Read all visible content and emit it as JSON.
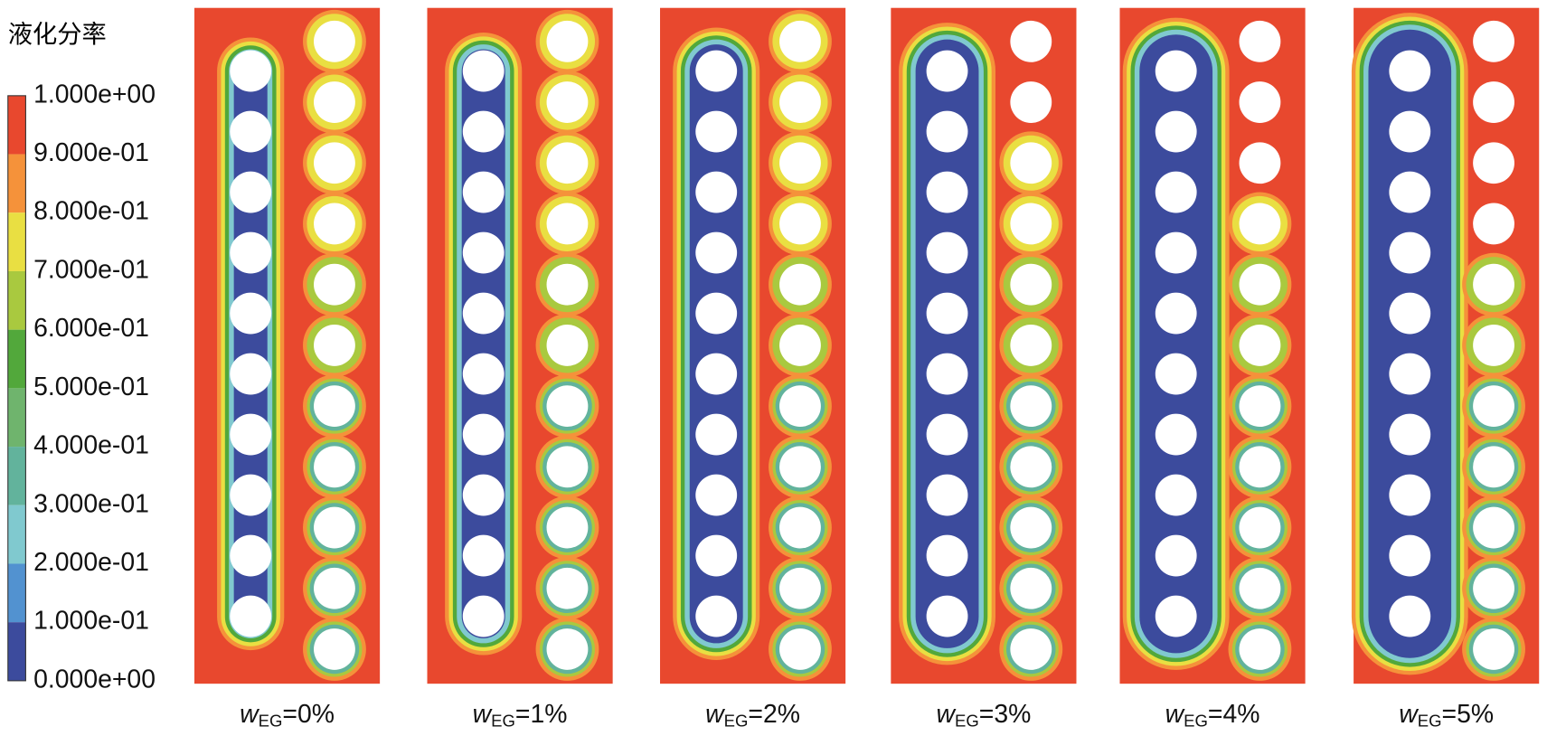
{
  "legend": {
    "title": "液化分率",
    "ticks": [
      "1.000e+00",
      "9.000e-01",
      "8.000e-01",
      "7.000e-01",
      "6.000e-01",
      "5.000e-01",
      "4.000e-01",
      "3.000e-01",
      "2.000e-01",
      "1.000e-01",
      "0.000e+00"
    ],
    "colors": [
      "#e8482e",
      "#f5923a",
      "#e9df42",
      "#a9c93f",
      "#52a83b",
      "#6fb46d",
      "#62b39c",
      "#80c9cf",
      "#5292d0",
      "#3c4b9d"
    ]
  },
  "panels": [
    {
      "var": "w",
      "sub": "EG",
      "value": "=0%"
    },
    {
      "var": "w",
      "sub": "EG",
      "value": "=1%"
    },
    {
      "var": "w",
      "sub": "EG",
      "value": "=2%"
    },
    {
      "var": "w",
      "sub": "EG",
      "value": "=3%"
    },
    {
      "var": "w",
      "sub": "EG",
      "value": "=4%"
    },
    {
      "var": "w",
      "sub": "EG",
      "value": "=5%"
    }
  ]
}
